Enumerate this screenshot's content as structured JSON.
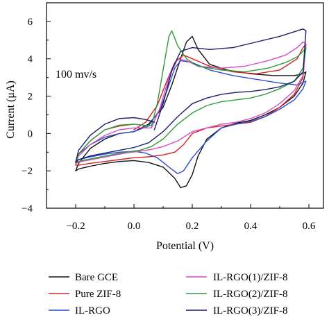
{
  "chart_data": {
    "type": "line",
    "title": "",
    "xlabel": "Potential (V)",
    "ylabel": "Current (μA)",
    "xlim": [
      -0.3,
      0.65
    ],
    "ylim": [
      -4,
      7
    ],
    "xticks": [
      -0.2,
      0.0,
      0.2,
      0.4,
      0.6
    ],
    "xtick_labels": [
      "−0.2",
      "0.0",
      "0.2",
      "0.4",
      "0.6"
    ],
    "yticks": [
      -4,
      -2,
      0,
      2,
      4,
      6
    ],
    "ytick_labels": [
      "−4",
      "−2",
      "0",
      "2",
      "4",
      "6"
    ],
    "grid": false,
    "legend_position": "bottom",
    "annotation": "100 mv/s",
    "series": [
      {
        "name": "Bare GCE",
        "color": "#111111",
        "x": [
          0.0,
          0.05,
          0.1,
          0.13,
          0.16,
          0.18,
          0.2,
          0.22,
          0.26,
          0.32,
          0.4,
          0.48,
          0.55,
          0.58,
          0.59,
          0.58,
          0.55,
          0.5,
          0.45,
          0.4,
          0.35,
          0.3,
          0.25,
          0.22,
          0.2,
          0.18,
          0.16,
          0.14,
          0.1,
          0.05,
          0.0,
          -0.05,
          -0.1,
          -0.15,
          -0.19,
          -0.2,
          -0.19,
          -0.15,
          -0.1,
          -0.05,
          0.0
        ],
        "y": [
          0.1,
          0.5,
          1.4,
          2.6,
          4.0,
          4.9,
          5.2,
          4.5,
          3.7,
          3.4,
          3.2,
          3.1,
          3.1,
          3.2,
          3.3,
          2.7,
          2.0,
          1.4,
          1.0,
          0.7,
          0.55,
          0.3,
          -0.3,
          -1.2,
          -2.2,
          -2.8,
          -2.9,
          -2.4,
          -1.8,
          -1.55,
          -1.45,
          -1.5,
          -1.6,
          -1.75,
          -1.9,
          -2.0,
          -1.6,
          -0.8,
          -0.3,
          0.0,
          0.1
        ]
      },
      {
        "name": "Pure ZIF-8",
        "color": "#d62020",
        "x": [
          0.0,
          0.04,
          0.08,
          0.11,
          0.14,
          0.17,
          0.2,
          0.26,
          0.34,
          0.42,
          0.5,
          0.56,
          0.58,
          0.59,
          0.58,
          0.55,
          0.5,
          0.45,
          0.4,
          0.35,
          0.3,
          0.25,
          0.2,
          0.17,
          0.14,
          0.1,
          0.05,
          0.0,
          -0.05,
          -0.1,
          -0.15,
          -0.19,
          -0.2,
          -0.19,
          -0.15,
          -0.1,
          -0.05,
          0.0
        ],
        "y": [
          0.2,
          0.6,
          1.5,
          2.7,
          3.8,
          4.2,
          4.0,
          3.6,
          3.3,
          3.2,
          3.4,
          4.0,
          4.6,
          4.8,
          3.0,
          2.1,
          1.4,
          0.9,
          0.6,
          0.5,
          0.4,
          0.3,
          0.0,
          -0.6,
          -1.0,
          -1.15,
          -1.25,
          -1.3,
          -1.4,
          -1.5,
          -1.6,
          -1.7,
          -1.7,
          -1.1,
          -0.4,
          0.2,
          0.4,
          0.5
        ]
      },
      {
        "name": "IL-RGO",
        "color": "#2a4cd7",
        "x": [
          0.0,
          0.05,
          0.09,
          0.12,
          0.14,
          0.16,
          0.2,
          0.26,
          0.34,
          0.42,
          0.5,
          0.56,
          0.59,
          0.58,
          0.55,
          0.5,
          0.45,
          0.4,
          0.35,
          0.3,
          0.25,
          0.2,
          0.17,
          0.15,
          0.12,
          0.08,
          0.04,
          0.0,
          -0.05,
          -0.1,
          -0.15,
          -0.19,
          -0.2,
          -0.19,
          -0.15,
          -0.1,
          -0.05,
          0.0
        ],
        "y": [
          0.1,
          0.4,
          1.3,
          2.6,
          3.5,
          3.9,
          3.8,
          3.4,
          3.1,
          2.9,
          2.7,
          2.6,
          2.8,
          2.4,
          1.8,
          1.3,
          0.9,
          0.65,
          0.5,
          0.3,
          -0.4,
          -1.3,
          -2.0,
          -2.15,
          -1.8,
          -1.3,
          -1.05,
          -0.95,
          -1.0,
          -1.1,
          -1.25,
          -1.4,
          -1.5,
          -1.1,
          -0.6,
          -0.2,
          0.0,
          0.1
        ]
      },
      {
        "name": "IL-RGO(1)/ZIF-8",
        "color": "#d34fc0",
        "x": [
          0.06,
          0.09,
          0.12,
          0.15,
          0.18,
          0.22,
          0.3,
          0.38,
          0.46,
          0.52,
          0.56,
          0.58,
          0.59,
          0.58,
          0.55,
          0.5,
          0.45,
          0.4,
          0.35,
          0.3,
          0.25,
          0.2,
          0.15,
          0.1,
          0.06,
          0.02,
          -0.03,
          -0.08,
          -0.13,
          -0.18,
          -0.2,
          -0.19,
          -0.15,
          -0.1,
          -0.05,
          0.0,
          0.03,
          0.06
        ],
        "y": [
          0.3,
          1.4,
          3.0,
          4.0,
          3.9,
          3.6,
          3.5,
          3.6,
          3.9,
          4.2,
          4.6,
          4.9,
          4.8,
          3.1,
          2.3,
          1.6,
          1.1,
          0.8,
          0.6,
          0.5,
          0.3,
          0.1,
          -0.4,
          -0.7,
          -0.85,
          -0.95,
          -1.05,
          -1.2,
          -1.35,
          -1.5,
          -1.6,
          -1.2,
          -0.6,
          -0.1,
          0.2,
          0.3,
          0.3,
          0.3
        ]
      },
      {
        "name": "IL-RGO(2)/ZIF-8",
        "color": "#2e9a3a",
        "x": [
          0.06,
          0.08,
          0.1,
          0.12,
          0.13,
          0.15,
          0.18,
          0.22,
          0.3,
          0.38,
          0.46,
          0.52,
          0.56,
          0.58,
          0.59,
          0.58,
          0.55,
          0.5,
          0.45,
          0.4,
          0.35,
          0.3,
          0.25,
          0.2,
          0.15,
          0.1,
          0.06,
          0.02,
          -0.03,
          -0.08,
          -0.13,
          -0.18,
          -0.2,
          -0.19,
          -0.15,
          -0.1,
          -0.05,
          0.0,
          0.03,
          0.06
        ],
        "y": [
          0.4,
          1.6,
          3.4,
          5.2,
          5.5,
          4.7,
          4.0,
          3.6,
          3.4,
          3.3,
          3.5,
          3.8,
          4.1,
          4.4,
          4.6,
          3.5,
          2.8,
          2.4,
          2.1,
          1.9,
          1.8,
          1.7,
          1.5,
          1.1,
          0.5,
          -0.3,
          -0.7,
          -0.9,
          -1.0,
          -1.15,
          -1.3,
          -1.45,
          -1.55,
          -1.1,
          -0.4,
          0.2,
          0.45,
          0.5,
          0.45,
          0.4
        ]
      },
      {
        "name": "IL-RGO(3)/ZIF-8",
        "color": "#1a1e6e",
        "x": [
          0.07,
          0.1,
          0.13,
          0.16,
          0.2,
          0.26,
          0.34,
          0.42,
          0.5,
          0.56,
          0.58,
          0.59,
          0.58,
          0.55,
          0.5,
          0.45,
          0.4,
          0.35,
          0.3,
          0.25,
          0.2,
          0.15,
          0.1,
          0.05,
          0.0,
          -0.05,
          -0.1,
          -0.15,
          -0.19,
          -0.2,
          -0.19,
          -0.15,
          -0.1,
          -0.05,
          0.0,
          0.04,
          0.07
        ],
        "y": [
          0.2,
          1.6,
          3.4,
          4.4,
          4.6,
          4.5,
          4.6,
          4.9,
          5.2,
          5.5,
          5.6,
          5.5,
          3.3,
          2.8,
          2.5,
          2.35,
          2.25,
          2.2,
          2.1,
          1.9,
          1.6,
          0.9,
          0.1,
          -0.5,
          -0.75,
          -0.9,
          -1.05,
          -1.2,
          -1.4,
          -1.55,
          -0.9,
          -0.1,
          0.5,
          0.8,
          0.85,
          0.75,
          0.6
        ]
      }
    ]
  }
}
